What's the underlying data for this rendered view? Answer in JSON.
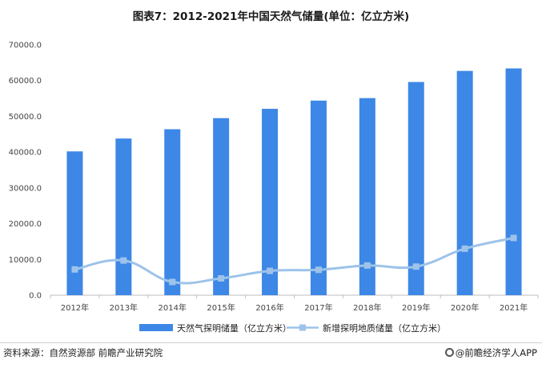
{
  "chart_data": {
    "type": "bar",
    "title": "图表7：2012-2021年中国天然气储量(单位：亿立方米)",
    "categories": [
      "2012年",
      "2013年",
      "2014年",
      "2015年",
      "2016年",
      "2017年",
      "2018年",
      "2019年",
      "2020年",
      "2021年"
    ],
    "series": [
      {
        "name": "天然气探明储量（亿立方米）",
        "type": "bar",
        "color": "#3d87e6",
        "values": [
          40200,
          43800,
          46400,
          49500,
          52100,
          54400,
          55100,
          59600,
          62700,
          63400
        ]
      },
      {
        "name": "新增探明地质储量（亿立方米）",
        "type": "line",
        "smooth": true,
        "color": "#9dc3ea",
        "values": [
          7200,
          9700,
          3700,
          4700,
          6800,
          7100,
          8300,
          8000,
          13000,
          16000
        ]
      }
    ],
    "ylim": [
      0,
      70000
    ],
    "yticks": [
      "0.0",
      "10000.0",
      "20000.0",
      "30000.0",
      "40000.0",
      "50000.0",
      "60000.0",
      "70000.0"
    ],
    "grid": false,
    "legend": "bottom"
  },
  "footer": {
    "source": "资料来源：自然资源部 前瞻产业研究院",
    "brand": "@前瞻经济学人APP"
  }
}
